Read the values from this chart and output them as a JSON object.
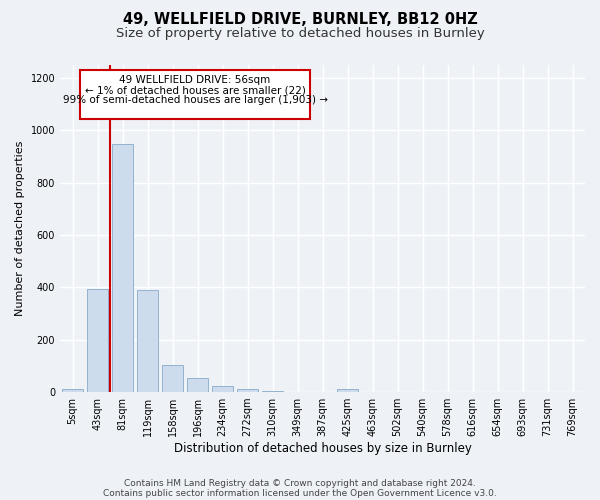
{
  "title_line1": "49, WELLFIELD DRIVE, BURNLEY, BB12 0HZ",
  "title_line2": "Size of property relative to detached houses in Burnley",
  "xlabel": "Distribution of detached houses by size in Burnley",
  "ylabel": "Number of detached properties",
  "bar_labels": [
    "5sqm",
    "43sqm",
    "81sqm",
    "119sqm",
    "158sqm",
    "196sqm",
    "234sqm",
    "272sqm",
    "310sqm",
    "349sqm",
    "387sqm",
    "425sqm",
    "463sqm",
    "502sqm",
    "540sqm",
    "578sqm",
    "616sqm",
    "654sqm",
    "693sqm",
    "731sqm",
    "769sqm"
  ],
  "bar_values": [
    10,
    395,
    950,
    390,
    105,
    55,
    22,
    10,
    5,
    0,
    0,
    10,
    0,
    0,
    0,
    0,
    0,
    0,
    0,
    0,
    0
  ],
  "bar_color": "#ccdcec",
  "bar_edgecolor": "#88aac8",
  "ylim": [
    0,
    1250
  ],
  "yticks": [
    0,
    200,
    400,
    600,
    800,
    1000,
    1200
  ],
  "property_line_x": 1.5,
  "annotation_line1": "49 WELLFIELD DRIVE: 56sqm",
  "annotation_line2": "← 1% of detached houses are smaller (22)",
  "annotation_line3": "99% of semi-detached houses are larger (1,903) →",
  "annotation_box_color": "#ffffff",
  "annotation_box_edgecolor": "#cc0000",
  "vline_color": "#cc0000",
  "footer_line1": "Contains HM Land Registry data © Crown copyright and database right 2024.",
  "footer_line2": "Contains public sector information licensed under the Open Government Licence v3.0.",
  "background_color": "#eef2f7",
  "grid_color": "#ffffff",
  "title1_fontsize": 10.5,
  "title2_fontsize": 9.5,
  "xlabel_fontsize": 8.5,
  "ylabel_fontsize": 8,
  "tick_fontsize": 7,
  "annotation_fontsize": 7.5,
  "footer_fontsize": 6.5
}
